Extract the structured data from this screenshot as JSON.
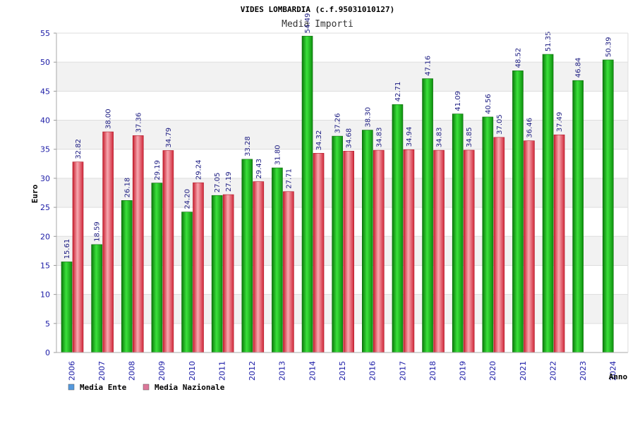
{
  "chart_data": {
    "type": "bar",
    "title": "VIDES LOMBARDIA (c.f.95031010127)",
    "subtitle": "Media Importi",
    "xlabel": "Anno",
    "ylabel": "Euro",
    "ylim": [
      0,
      55
    ],
    "yticks": [
      0,
      5,
      10,
      15,
      20,
      25,
      30,
      35,
      40,
      45,
      50,
      55
    ],
    "grid": true,
    "legend_position": "bottom-left",
    "categories": [
      "2006",
      "2007",
      "2008",
      "2009",
      "2010",
      "2011",
      "2012",
      "2013",
      "2014",
      "2015",
      "2016",
      "2017",
      "2018",
      "2019",
      "2020",
      "2021",
      "2022",
      "2023",
      "2024"
    ],
    "series": [
      {
        "name": "Media Ente",
        "color": "#22aa22",
        "legend_color": "#5599dd",
        "values": [
          15.61,
          18.59,
          26.18,
          29.19,
          24.2,
          27.05,
          33.28,
          31.8,
          54.49,
          37.26,
          38.3,
          42.71,
          47.16,
          41.09,
          40.56,
          48.52,
          51.35,
          46.84,
          50.39
        ],
        "labels": [
          "15.61",
          "18.59",
          "26.18",
          "29.19",
          "24.20",
          "27.05",
          "33.28",
          "31.80",
          "54.49",
          "37.26",
          "38.30",
          "42.71",
          "47.16",
          "41.09",
          "40.56",
          "48.52",
          "51.35",
          "46.84",
          "50.39"
        ]
      },
      {
        "name": "Media Nazionale",
        "color": "#dd3344",
        "legend_color": "#dd7799",
        "values": [
          32.82,
          38.0,
          37.36,
          34.79,
          29.24,
          27.19,
          29.43,
          27.71,
          34.32,
          34.68,
          34.83,
          34.94,
          34.83,
          34.85,
          37.05,
          36.46,
          37.49,
          null,
          null
        ],
        "labels": [
          "32.82",
          "38.00",
          "37.36",
          "34.79",
          "29.24",
          "27.19",
          "29.43",
          "27.71",
          "34.32",
          "34.68",
          "34.83",
          "34.94",
          "34.83",
          "34.85",
          "37.05",
          "36.46",
          "37.49",
          null,
          null
        ]
      }
    ]
  }
}
